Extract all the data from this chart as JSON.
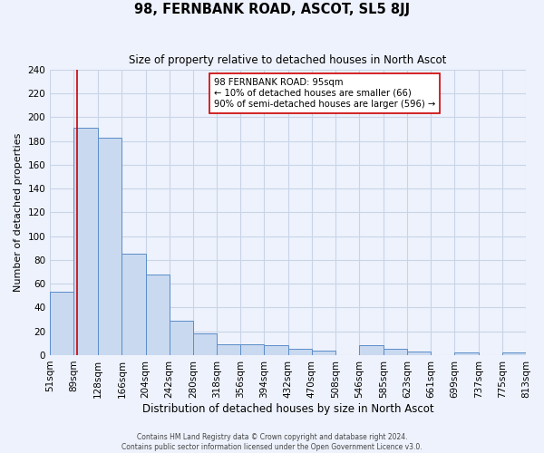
{
  "title": "98, FERNBANK ROAD, ASCOT, SL5 8JJ",
  "subtitle": "Size of property relative to detached houses in North Ascot",
  "xlabel": "Distribution of detached houses by size in North Ascot",
  "ylabel": "Number of detached properties",
  "bin_edges": [
    51,
    89,
    128,
    166,
    204,
    242,
    280,
    318,
    356,
    394,
    432,
    470,
    508,
    546,
    585,
    623,
    661,
    699,
    737,
    775,
    813
  ],
  "bin_labels": [
    "51sqm",
    "89sqm",
    "128sqm",
    "166sqm",
    "204sqm",
    "242sqm",
    "280sqm",
    "318sqm",
    "356sqm",
    "394sqm",
    "432sqm",
    "470sqm",
    "508sqm",
    "546sqm",
    "585sqm",
    "623sqm",
    "661sqm",
    "699sqm",
    "737sqm",
    "775sqm",
    "813sqm"
  ],
  "counts": [
    53,
    191,
    183,
    85,
    68,
    29,
    18,
    9,
    9,
    8,
    5,
    4,
    0,
    8,
    5,
    3,
    0,
    2,
    0,
    2
  ],
  "bar_color": "#c9d9f0",
  "bar_edge_color": "#5b8dc8",
  "grid_color": "#c8d4e8",
  "background_color": "#eef2fc",
  "vline_x": 95,
  "vline_color": "#cc0000",
  "annotation_line1": "98 FERNBANK ROAD: 95sqm",
  "annotation_line2": "← 10% of detached houses are smaller (66)",
  "annotation_line3": "90% of semi-detached houses are larger (596) →",
  "annotation_box_color": "#ffffff",
  "annotation_box_edge": "#cc0000",
  "ylim": [
    0,
    240
  ],
  "yticks": [
    0,
    20,
    40,
    60,
    80,
    100,
    120,
    140,
    160,
    180,
    200,
    220,
    240
  ],
  "footer_line1": "Contains HM Land Registry data © Crown copyright and database right 2024.",
  "footer_line2": "Contains public sector information licensed under the Open Government Licence v3.0."
}
